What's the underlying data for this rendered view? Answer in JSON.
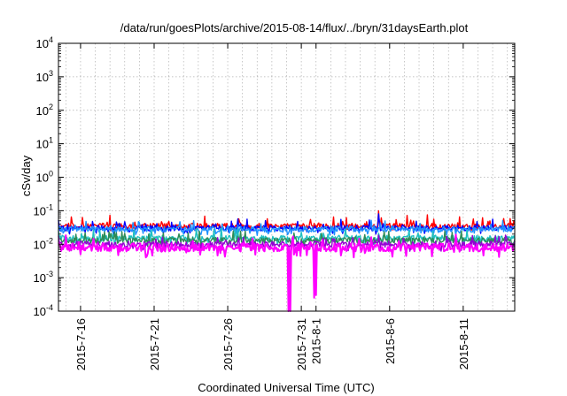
{
  "chart_data": {
    "type": "line",
    "title": "/data/run/goesPlots/archive/2015-08-14/flux/../bryn/31daysEarth.plot",
    "xlabel": "Coordinated Universal Time (UTC)",
    "ylabel": "cSv/day",
    "y_scale": "log",
    "ylim": [
      0.0001,
      10000
    ],
    "xlim": [
      "2015-07-14T12:00",
      "2015-08-14T12:00"
    ],
    "grid": true,
    "legend": "none",
    "x_ticks": [
      {
        "date": "2015-07-16",
        "label": "2015-7-16"
      },
      {
        "date": "2015-07-21",
        "label": "2015-7-21"
      },
      {
        "date": "2015-07-26",
        "label": "2015-7-26"
      },
      {
        "date": "2015-07-31",
        "label": "2015-7-31"
      },
      {
        "date": "2015-08-01",
        "label": "2015-8-1"
      },
      {
        "date": "2015-08-06",
        "label": "2015-8-6"
      },
      {
        "date": "2015-08-11",
        "label": "2015-8-11"
      }
    ],
    "y_ticks": [
      {
        "value": 0.0001,
        "base": "10",
        "exp": "-4"
      },
      {
        "value": 0.001,
        "base": "10",
        "exp": "-3"
      },
      {
        "value": 0.01,
        "base": "10",
        "exp": "-2"
      },
      {
        "value": 0.1,
        "base": "10",
        "exp": "-1"
      },
      {
        "value": 1,
        "base": "10",
        "exp": "0"
      },
      {
        "value": 10,
        "base": "10",
        "exp": "1"
      },
      {
        "value": 100,
        "base": "10",
        "exp": "2"
      },
      {
        "value": 1000,
        "base": "10",
        "exp": "3"
      },
      {
        "value": 10000,
        "base": "10",
        "exp": "4"
      }
    ],
    "series": [
      {
        "color": "#ff0000",
        "typical": 0.035,
        "low": 0.025,
        "high": 0.075,
        "spikes": [
          {
            "date": "2015-08-05T06:00",
            "value": 0.1
          }
        ]
      },
      {
        "color": "#0000ff",
        "typical": 0.03,
        "low": 0.02,
        "high": 0.06,
        "spikes": [
          {
            "date": "2015-08-05T06:00",
            "value": 0.08
          }
        ]
      },
      {
        "color": "#1e90ff",
        "typical": 0.028,
        "low": 0.018,
        "high": 0.055,
        "spikes": []
      },
      {
        "color": "#20c0c0",
        "typical": 0.015,
        "low": 0.009,
        "high": 0.03,
        "spikes": []
      },
      {
        "color": "#2e8b57",
        "typical": 0.013,
        "low": 0.008,
        "high": 0.025,
        "spikes": []
      },
      {
        "color": "#9400d3",
        "typical": 0.01,
        "low": 0.006,
        "high": 0.02,
        "spikes": []
      },
      {
        "color": "#ff00ff",
        "typical": 0.008,
        "low": 0.004,
        "high": 0.02,
        "spikes": [
          {
            "date": "2015-07-30T03:00",
            "value": 0.0001
          },
          {
            "date": "2015-07-30T06:00",
            "value": 0.0001
          },
          {
            "date": "2015-07-31T21:00",
            "value": 0.00025
          },
          {
            "date": "2015-08-01T00:00",
            "value": 0.0003
          }
        ]
      }
    ]
  }
}
